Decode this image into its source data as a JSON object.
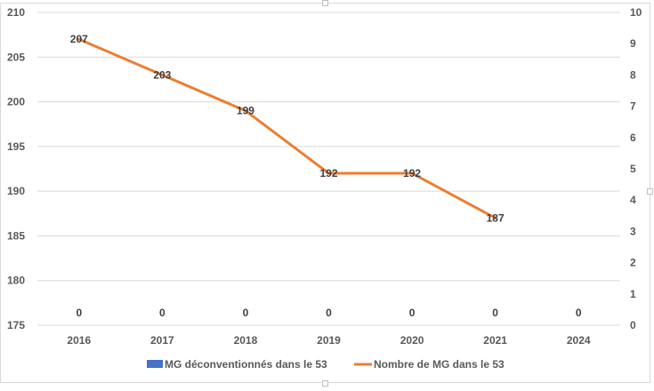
{
  "chart_data": {
    "type": "bar",
    "categories": [
      "2016",
      "2017",
      "2018",
      "2019",
      "2020",
      "2021",
      "2024"
    ],
    "series": [
      {
        "name": "MG déconventionnés dans le 53",
        "type": "bar",
        "axis": "secondary",
        "values": [
          0,
          0,
          0,
          0,
          0,
          0,
          0
        ],
        "data_labels": [
          "0",
          "0",
          "0",
          "0",
          "0",
          "0",
          "0"
        ],
        "color": "#4472c4"
      },
      {
        "name": "Nombre de MG dans le 53",
        "type": "line",
        "axis": "primary",
        "values": [
          207,
          203,
          199,
          192,
          192,
          187,
          null
        ],
        "data_labels": [
          "207",
          "203",
          "199",
          "192",
          "192",
          "187",
          ""
        ],
        "color": "#ed7d31"
      }
    ],
    "primary_y": {
      "ylim": [
        175,
        210
      ],
      "ticks": [
        "210",
        "205",
        "200",
        "195",
        "190",
        "185",
        "180",
        "175"
      ]
    },
    "secondary_y": {
      "ylim": [
        0,
        10
      ],
      "ticks": [
        "10",
        "9",
        "8",
        "7",
        "6",
        "5",
        "4",
        "3",
        "2",
        "1",
        "0"
      ]
    },
    "grid": true,
    "legend": "bottom"
  }
}
